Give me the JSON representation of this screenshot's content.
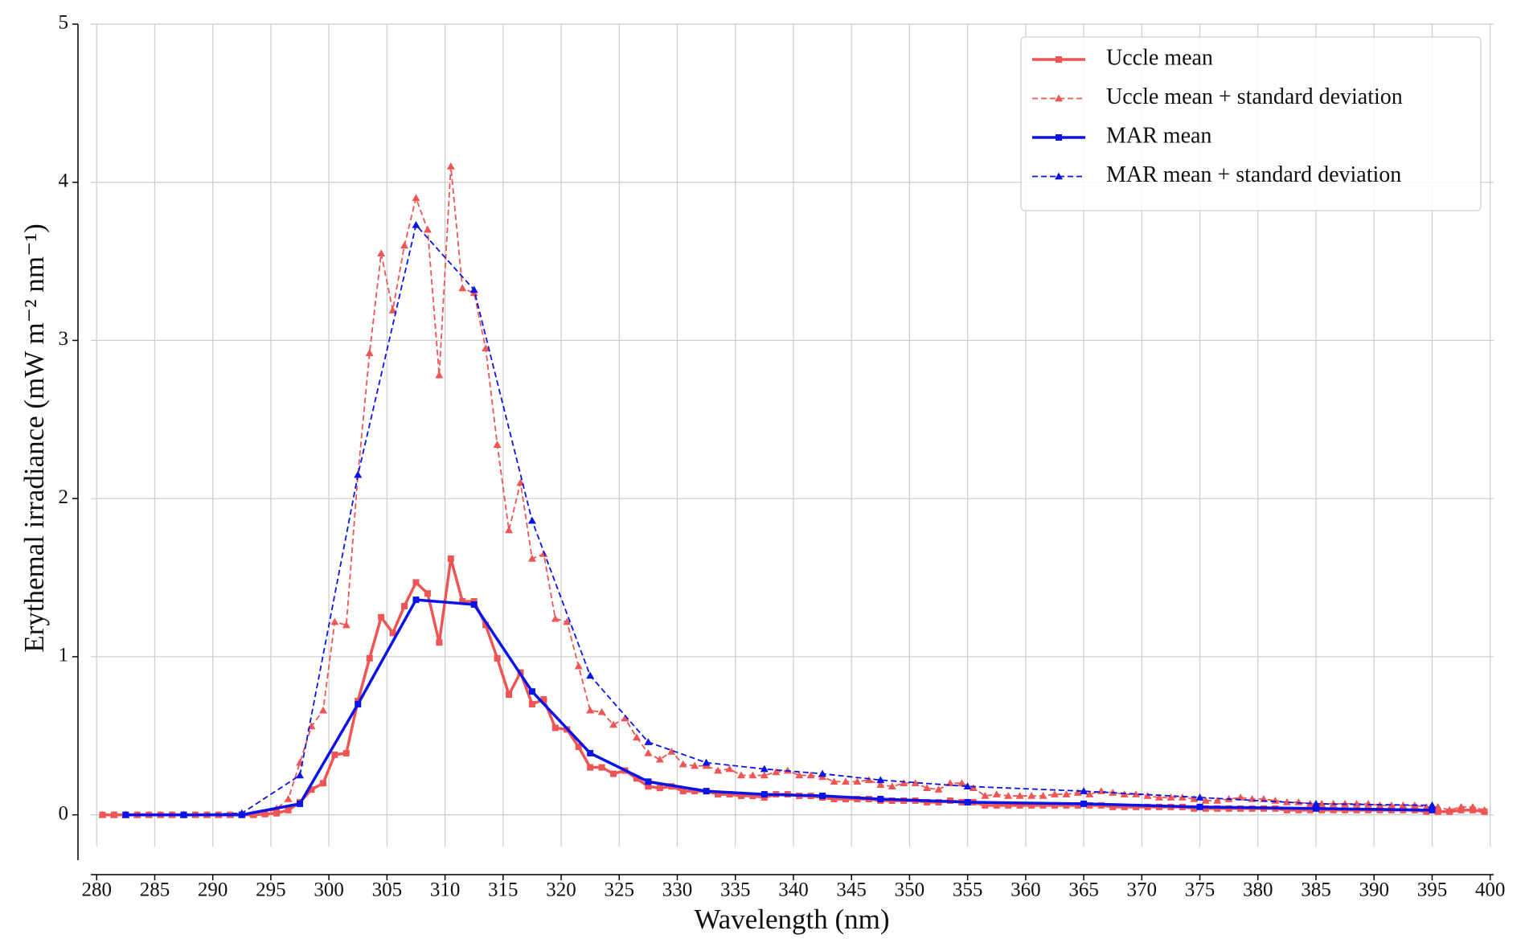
{
  "chart_data": {
    "type": "line",
    "xlabel": "Wavelength (nm)",
    "ylabel": "Erythemal irradiance (mW m⁻² nm⁻¹)",
    "xlim": [
      279.5,
      400.3
    ],
    "ylim": [
      -0.2,
      5
    ],
    "xticks": [
      280,
      285,
      290,
      295,
      300,
      305,
      310,
      315,
      320,
      325,
      330,
      335,
      340,
      345,
      350,
      355,
      360,
      365,
      370,
      375,
      380,
      385,
      390,
      395,
      400
    ],
    "yticks": [
      0,
      1,
      2,
      3,
      4,
      5
    ],
    "grid": true,
    "legend": "upper right",
    "series": [
      {
        "name": "Uccle mean",
        "color": "#f05555",
        "linestyle": "solid",
        "marker": "square",
        "x": [
          280.5,
          281.5,
          282.5,
          283.5,
          284.5,
          285.5,
          286.5,
          287.5,
          288.5,
          289.5,
          290.5,
          291.5,
          292.5,
          293.5,
          294.5,
          295.5,
          296.5,
          297.5,
          298.5,
          299.5,
          300.5,
          301.5,
          302.5,
          303.5,
          304.5,
          305.5,
          306.5,
          307.5,
          308.5,
          309.5,
          310.5,
          311.5,
          312.5,
          313.5,
          314.5,
          315.5,
          316.5,
          317.5,
          318.5,
          319.5,
          320.5,
          321.5,
          322.5,
          323.5,
          324.5,
          325.5,
          326.5,
          327.5,
          328.5,
          329.5,
          330.5,
          331.5,
          332.5,
          333.5,
          334.5,
          335.5,
          336.5,
          337.5,
          338.5,
          339.5,
          340.5,
          341.5,
          342.5,
          343.5,
          344.5,
          345.5,
          346.5,
          347.5,
          348.5,
          349.5,
          350.5,
          351.5,
          352.5,
          353.5,
          354.5,
          355.5,
          356.5,
          357.5,
          358.5,
          359.5,
          360.5,
          361.5,
          362.5,
          363.5,
          364.5,
          365.5,
          366.5,
          367.5,
          368.5,
          369.5,
          370.5,
          371.5,
          372.5,
          373.5,
          374.5,
          375.5,
          376.5,
          377.5,
          378.5,
          379.5,
          380.5,
          381.5,
          382.5,
          383.5,
          384.5,
          385.5,
          386.5,
          387.5,
          388.5,
          389.5,
          390.5,
          391.5,
          392.5,
          393.5,
          394.5,
          395.5,
          396.5,
          397.5,
          398.5,
          399.5
        ],
        "values": [
          0,
          0,
          0,
          0,
          0,
          0,
          0,
          0,
          0,
          0,
          0,
          0,
          0,
          0,
          0.005,
          0.01,
          0.03,
          0.08,
          0.16,
          0.2,
          0.38,
          0.39,
          0.72,
          0.99,
          1.25,
          1.15,
          1.32,
          1.47,
          1.4,
          1.09,
          1.62,
          1.35,
          1.35,
          1.2,
          0.99,
          0.76,
          0.9,
          0.7,
          0.73,
          0.55,
          0.54,
          0.43,
          0.3,
          0.3,
          0.26,
          0.28,
          0.23,
          0.18,
          0.17,
          0.18,
          0.15,
          0.15,
          0.15,
          0.13,
          0.13,
          0.12,
          0.12,
          0.11,
          0.13,
          0.13,
          0.12,
          0.12,
          0.11,
          0.1,
          0.1,
          0.1,
          0.1,
          0.09,
          0.09,
          0.09,
          0.09,
          0.08,
          0.08,
          0.09,
          0.08,
          0.08,
          0.06,
          0.06,
          0.06,
          0.06,
          0.06,
          0.06,
          0.06,
          0.06,
          0.06,
          0.06,
          0.06,
          0.05,
          0.05,
          0.05,
          0.05,
          0.05,
          0.05,
          0.05,
          0.04,
          0.04,
          0.04,
          0.04,
          0.04,
          0.04,
          0.04,
          0.04,
          0.03,
          0.03,
          0.03,
          0.03,
          0.03,
          0.03,
          0.03,
          0.03,
          0.03,
          0.03,
          0.03,
          0.03,
          0.02,
          0.02,
          0.02,
          0.03,
          0.03,
          0.02
        ]
      },
      {
        "name": "Uccle mean + standard deviation",
        "color": "#f05555",
        "linestyle": "dashed",
        "marker": "triangle",
        "x": [
          280.5,
          281.5,
          282.5,
          283.5,
          284.5,
          285.5,
          286.5,
          287.5,
          288.5,
          289.5,
          290.5,
          291.5,
          292.5,
          293.5,
          294.5,
          295.5,
          296.5,
          297.5,
          298.5,
          299.5,
          300.5,
          301.5,
          302.5,
          303.5,
          304.5,
          305.5,
          306.5,
          307.5,
          308.5,
          309.5,
          310.5,
          311.5,
          312.5,
          313.5,
          314.5,
          315.5,
          316.5,
          317.5,
          318.5,
          319.5,
          320.5,
          321.5,
          322.5,
          323.5,
          324.5,
          325.5,
          326.5,
          327.5,
          328.5,
          329.5,
          330.5,
          331.5,
          332.5,
          333.5,
          334.5,
          335.5,
          336.5,
          337.5,
          338.5,
          339.5,
          340.5,
          341.5,
          342.5,
          343.5,
          344.5,
          345.5,
          346.5,
          347.5,
          348.5,
          349.5,
          350.5,
          351.5,
          352.5,
          353.5,
          354.5,
          355.5,
          356.5,
          357.5,
          358.5,
          359.5,
          360.5,
          361.5,
          362.5,
          363.5,
          364.5,
          365.5,
          366.5,
          367.5,
          368.5,
          369.5,
          370.5,
          371.5,
          372.5,
          373.5,
          374.5,
          375.5,
          376.5,
          377.5,
          378.5,
          379.5,
          380.5,
          381.5,
          382.5,
          383.5,
          384.5,
          385.5,
          386.5,
          387.5,
          388.5,
          389.5,
          390.5,
          391.5,
          392.5,
          393.5,
          394.5,
          395.5,
          396.5,
          397.5,
          398.5,
          399.5
        ],
        "values": [
          0,
          0,
          0,
          0,
          0,
          0,
          0,
          0,
          0,
          0,
          0,
          0,
          0,
          0.005,
          0.01,
          0.04,
          0.1,
          0.33,
          0.56,
          0.66,
          1.22,
          1.2,
          2.15,
          2.92,
          3.55,
          3.19,
          3.6,
          3.9,
          3.7,
          2.78,
          4.1,
          3.33,
          3.3,
          2.95,
          2.34,
          1.8,
          2.1,
          1.62,
          1.65,
          1.24,
          1.22,
          0.94,
          0.66,
          0.65,
          0.57,
          0.61,
          0.49,
          0.39,
          0.35,
          0.4,
          0.32,
          0.31,
          0.31,
          0.28,
          0.29,
          0.25,
          0.25,
          0.25,
          0.27,
          0.28,
          0.25,
          0.25,
          0.24,
          0.21,
          0.21,
          0.21,
          0.22,
          0.19,
          0.18,
          0.2,
          0.2,
          0.17,
          0.16,
          0.2,
          0.2,
          0.17,
          0.12,
          0.13,
          0.12,
          0.12,
          0.12,
          0.12,
          0.13,
          0.13,
          0.14,
          0.13,
          0.15,
          0.14,
          0.13,
          0.13,
          0.12,
          0.11,
          0.11,
          0.11,
          0.1,
          0.09,
          0.09,
          0.1,
          0.11,
          0.1,
          0.1,
          0.09,
          0.08,
          0.08,
          0.07,
          0.07,
          0.07,
          0.07,
          0.07,
          0.07,
          0.06,
          0.06,
          0.06,
          0.06,
          0.05,
          0.05,
          0.03,
          0.05,
          0.05,
          0.03
        ]
      },
      {
        "name": "MAR mean",
        "color": "#0a14e6",
        "linestyle": "solid",
        "marker": "square",
        "x": [
          282.5,
          287.5,
          292.5,
          297.5,
          302.5,
          307.5,
          312.5,
          317.5,
          322.5,
          327.5,
          332.5,
          337.5,
          342.5,
          347.5,
          355,
          365,
          375,
          385,
          395
        ],
        "values": [
          0,
          0,
          0,
          0.07,
          0.7,
          1.36,
          1.33,
          0.78,
          0.39,
          0.21,
          0.15,
          0.13,
          0.12,
          0.1,
          0.08,
          0.07,
          0.05,
          0.04,
          0.03
        ]
      },
      {
        "name": "MAR mean + standard deviation",
        "color": "#0a14e6",
        "linestyle": "dashed",
        "marker": "triangle",
        "x": [
          282.5,
          287.5,
          292.5,
          297.5,
          302.5,
          307.5,
          312.5,
          317.5,
          322.5,
          327.5,
          332.5,
          337.5,
          342.5,
          347.5,
          355,
          365,
          375,
          385,
          395
        ],
        "values": [
          0,
          0,
          0.01,
          0.25,
          2.15,
          3.73,
          3.32,
          1.86,
          0.88,
          0.46,
          0.33,
          0.29,
          0.26,
          0.22,
          0.18,
          0.15,
          0.11,
          0.07,
          0.06
        ]
      }
    ]
  }
}
